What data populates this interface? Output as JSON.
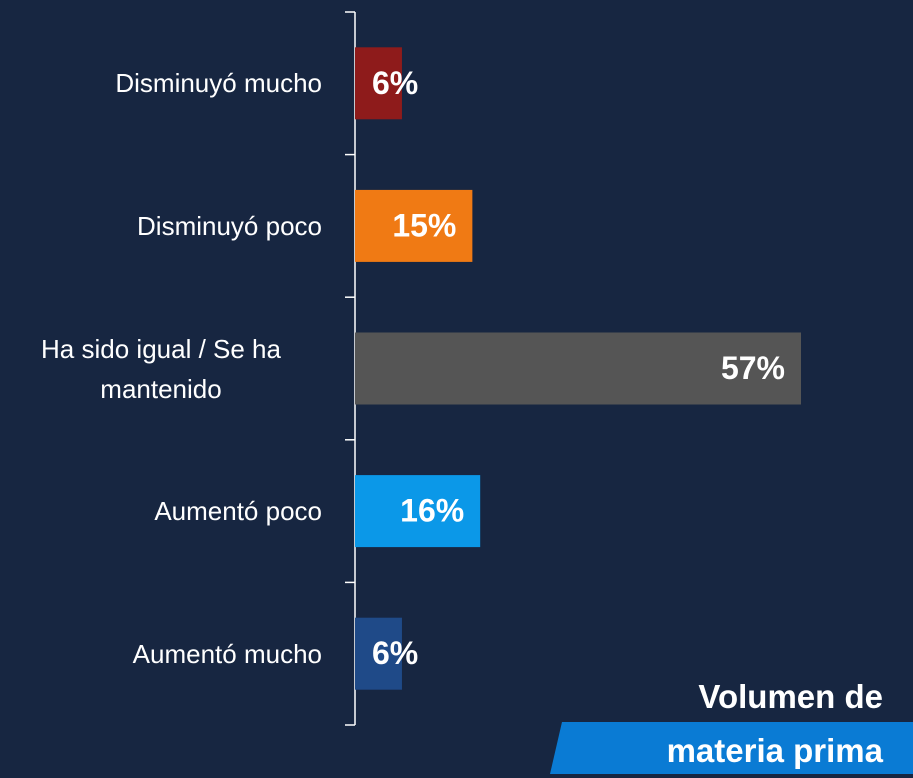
{
  "chart_data": {
    "type": "bar",
    "orientation": "horizontal",
    "title": "Volumen de materia prima",
    "categories": [
      "Disminuyó mucho",
      "Disminuyó poco",
      "Ha sido igual / Se ha mantenido",
      "Aumentó poco",
      "Aumentó mucho"
    ],
    "values": [
      6,
      15,
      57,
      16,
      6
    ],
    "value_labels": [
      "6%",
      "15%",
      "57%",
      "16%",
      "6%"
    ],
    "colors": [
      "#8e1b1b",
      "#f07a14",
      "#555555",
      "#0b98e8",
      "#1f4a88"
    ]
  }
}
